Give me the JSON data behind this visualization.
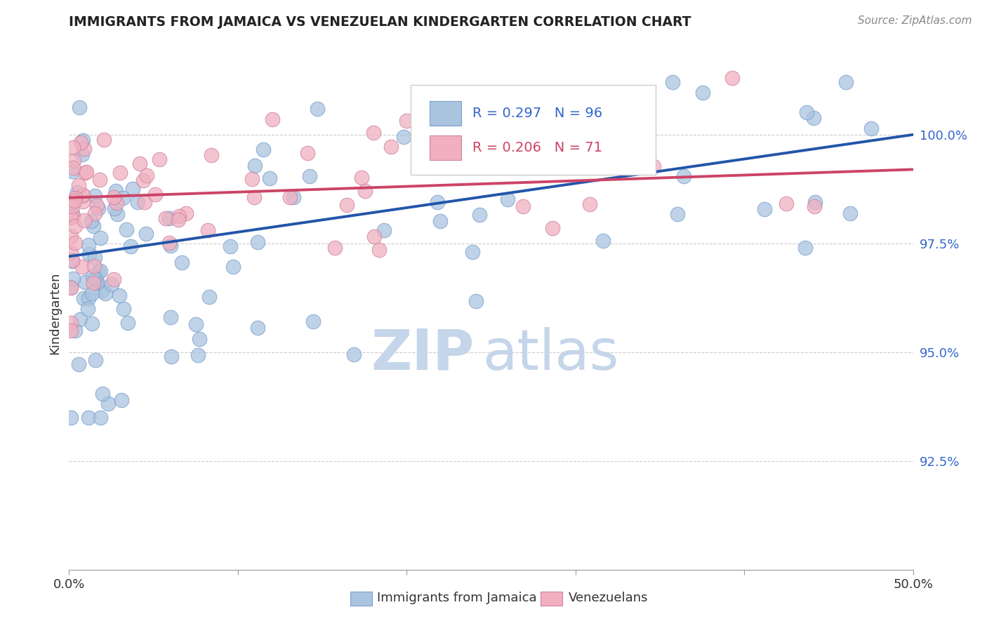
{
  "title": "IMMIGRANTS FROM JAMAICA VS VENEZUELAN KINDERGARTEN CORRELATION CHART",
  "source_text": "Source: ZipAtlas.com",
  "ylabel": "Kindergarten",
  "y_tick_labels": [
    "92.5%",
    "95.0%",
    "97.5%",
    "100.0%"
  ],
  "y_tick_values": [
    92.5,
    95.0,
    97.5,
    100.0
  ],
  "xlim": [
    0.0,
    50.0
  ],
  "ylim": [
    90.0,
    101.8
  ],
  "legend_blue_r": "R = 0.297",
  "legend_blue_n": "N = 96",
  "legend_pink_r": "R = 0.206",
  "legend_pink_n": "N = 71",
  "blue_color": "#aac4e0",
  "blue_edge_color": "#7aA0cc",
  "pink_color": "#f0b0c0",
  "pink_edge_color": "#d080a0",
  "blue_line_color": "#2255aa",
  "pink_line_color": "#cc4466",
  "watermark_zip_color": "#c5d5ea",
  "watermark_atlas_color": "#c5d5ea",
  "background_color": "#ffffff",
  "blue_line_x0": 0.0,
  "blue_line_y0": 97.2,
  "blue_line_x1": 50.0,
  "blue_line_y1": 100.0,
  "pink_line_x0": 0.0,
  "pink_line_y0": 98.55,
  "pink_line_x1": 50.0,
  "pink_line_y1": 99.2
}
